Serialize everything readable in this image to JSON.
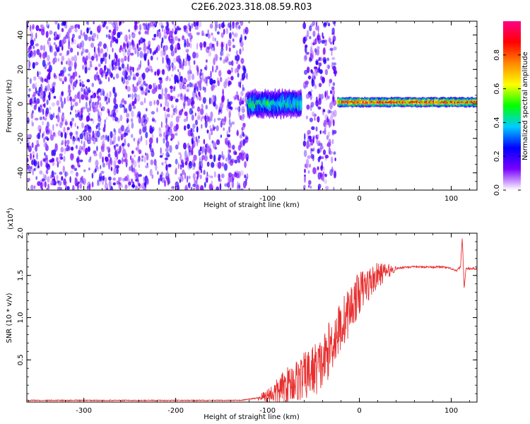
{
  "title": "C2E6.2023.318.08.59.R03",
  "chart_data": [
    {
      "type": "heatmap",
      "xlabel": "Height of straight line (km)",
      "ylabel": "Frequency (Hz)",
      "xlim": [
        -362,
        128
      ],
      "ylim": [
        -50,
        48
      ],
      "x_ticks": [
        -300,
        -200,
        -100,
        0,
        100
      ],
      "x_tick_labels": [
        "-300",
        "-200",
        "-100",
        "0",
        "100"
      ],
      "y_ticks": [
        -40,
        -20,
        0,
        20,
        40
      ],
      "y_tick_labels": [
        "-40",
        "-20",
        "0",
        "20",
        "40"
      ],
      "colorbar": {
        "label": "Normalized spectral amplitude",
        "range": [
          0,
          1
        ],
        "ticks": [
          0.0,
          0.2,
          0.4,
          0.6,
          0.8
        ],
        "tick_labels": [
          "0.0",
          "0.2",
          "0.4",
          "0.6",
          "0.8"
        ],
        "colors": [
          "#ffffff",
          "#7a00ff",
          "#0000ff",
          "#00ccff",
          "#00ff00",
          "#ffff00",
          "#ff8800",
          "#ff0000",
          "#ff0088"
        ]
      },
      "regions": [
        {
          "x_range": [
            -362,
            -122
          ],
          "kind": "noise",
          "amplitude": 0.15
        },
        {
          "x_range": [
            -122,
            -63
          ],
          "kind": "band",
          "center_hz": 0,
          "half_width_hz": 8,
          "amplitude": 0.45
        },
        {
          "x_range": [
            -60,
            -26
          ],
          "kind": "noise",
          "amplitude": 0.15
        },
        {
          "x_range": [
            -24,
            128
          ],
          "kind": "line",
          "center_hz": 1,
          "half_width_hz": 3,
          "amplitude": 0.85
        }
      ]
    },
    {
      "type": "line",
      "xlabel": "Height of straight line (km)",
      "ylabel": "SNR (10 * v/v)",
      "y_multiplier": "(x10",
      "y_multiplier_exp": "4",
      "y_multiplier_close": ")",
      "xlim": [
        -362,
        128
      ],
      "ylim": [
        0,
        2.0
      ],
      "x_ticks": [
        -300,
        -200,
        -100,
        0,
        100
      ],
      "x_tick_labels": [
        "-300",
        "-200",
        "-100",
        "0",
        "100"
      ],
      "y_ticks": [
        0.5,
        1.0,
        1.5,
        2.0
      ],
      "y_tick_labels": [
        "0.5",
        "1.0",
        "1.5",
        "2.0"
      ],
      "color": "#e83030",
      "series": [
        {
          "x": [
            -362,
            -300,
            -200,
            -130,
            -110,
            -100,
            -90,
            -80,
            -70,
            -60,
            -50,
            -40,
            -30,
            -20,
            -10,
            0,
            10,
            20,
            30,
            40,
            50,
            60,
            70,
            80,
            90,
            100,
            105,
            110,
            112,
            114,
            116,
            120,
            128
          ],
          "y": [
            0.02,
            0.02,
            0.02,
            0.02,
            0.05,
            0.08,
            0.12,
            0.2,
            0.25,
            0.3,
            0.38,
            0.45,
            0.7,
            0.9,
            1.1,
            1.3,
            1.4,
            1.5,
            1.55,
            1.58,
            1.6,
            1.6,
            1.6,
            1.6,
            1.6,
            1.58,
            1.55,
            1.6,
            1.95,
            1.35,
            1.58,
            1.58,
            1.58
          ]
        }
      ]
    }
  ]
}
